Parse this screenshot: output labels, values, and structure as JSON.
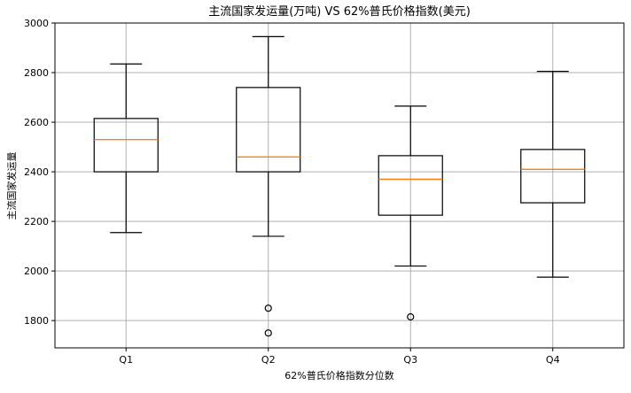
{
  "chart_data": {
    "type": "box",
    "title": "主流国家发运量(万吨) VS 62%普氏价格指数(美元)",
    "xlabel": "62%普氏价格指数分位数",
    "ylabel": "主流国家发运量",
    "categories": [
      "Q1",
      "Q2",
      "Q3",
      "Q4"
    ],
    "ylim": [
      1690,
      3000
    ],
    "yticks": [
      1800,
      2000,
      2200,
      2400,
      2600,
      2800,
      3000
    ],
    "grid": true,
    "boxes": [
      {
        "category": "Q1",
        "whisker_low": 2155,
        "q1": 2400,
        "median": 2530,
        "q3": 2615,
        "whisker_high": 2835,
        "outliers": []
      },
      {
        "category": "Q2",
        "whisker_low": 2140,
        "q1": 2400,
        "median": 2460,
        "q3": 2740,
        "whisker_high": 2945,
        "outliers": [
          1850,
          1750
        ]
      },
      {
        "category": "Q3",
        "whisker_low": 2020,
        "q1": 2225,
        "median": 2370,
        "q3": 2465,
        "whisker_high": 2665,
        "outliers": [
          1815
        ]
      },
      {
        "category": "Q4",
        "whisker_low": 1975,
        "q1": 2275,
        "median": 2410,
        "q3": 2490,
        "whisker_high": 2805,
        "outliers": []
      }
    ],
    "colors": {
      "box": "#000000",
      "median": "#ff7f0e",
      "grid": "#b0b0b0",
      "outlier": "#000000"
    }
  }
}
